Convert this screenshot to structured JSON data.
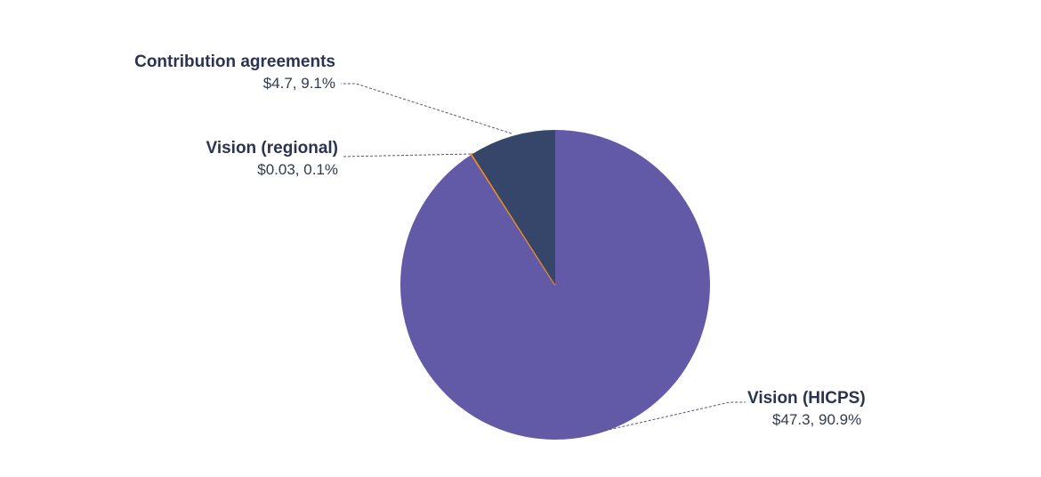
{
  "chart_data": {
    "type": "pie",
    "slices": [
      {
        "label": "Vision (HICPS)",
        "value": 47.3,
        "value_text": "$47.3, 90.9%",
        "color": "#625aa6"
      },
      {
        "label": "Vision (regional)",
        "value": 0.03,
        "value_text": "$0.03, 0.1%",
        "color": "#f08c1e"
      },
      {
        "label": "Contribution agreements",
        "value": 4.7,
        "value_text": "$4.7, 9.1%",
        "color": "#36466b"
      }
    ],
    "start_angle": "12 o'clock",
    "direction": "clockwise",
    "legend": "none"
  }
}
